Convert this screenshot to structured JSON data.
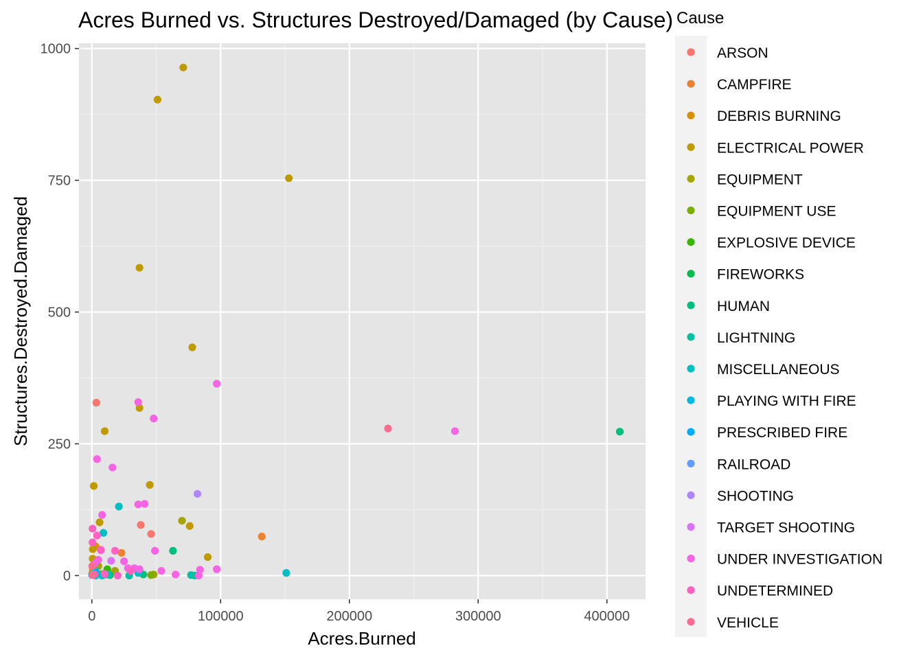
{
  "chart_data": {
    "type": "scatter",
    "title": "Acres Burned vs. Structures Destroyed/Damaged (by Cause)",
    "xlabel": "Acres.Burned",
    "ylabel": "Structures.Destroyed.Damaged",
    "xlim": [
      -10000,
      430000
    ],
    "ylim": [
      -45,
      1010
    ],
    "x_ticks": [
      0,
      100000,
      200000,
      300000,
      400000
    ],
    "x_tick_labels": [
      "0",
      "100000",
      "200000",
      "300000",
      "400000"
    ],
    "y_ticks": [
      0,
      250,
      500,
      750,
      1000
    ],
    "y_tick_labels": [
      "0",
      "250",
      "500",
      "750",
      "1000"
    ],
    "grid": true,
    "panel_background": "#e5e5e5",
    "legend": {
      "title": "Cause",
      "position": "right",
      "background": "#f2f2f2"
    },
    "series": [
      {
        "name": "ARSON",
        "color": "#F8766D",
        "points": [
          [
            3500,
            328
          ],
          [
            38000,
            96
          ],
          [
            46000,
            79
          ],
          [
            2000,
            15
          ]
        ]
      },
      {
        "name": "CAMPFIRE",
        "color": "#EA8331",
        "points": [
          [
            132000,
            74
          ],
          [
            23000,
            43
          ],
          [
            500,
            5
          ]
        ]
      },
      {
        "name": "DEBRIS BURNING",
        "color": "#D89000",
        "points": [
          [
            800,
            12
          ],
          [
            1500,
            3
          ],
          [
            3000,
            55
          ]
        ]
      },
      {
        "name": "ELECTRICAL POWER",
        "color": "#C09B00",
        "points": [
          [
            71000,
            964
          ],
          [
            51000,
            903
          ],
          [
            153000,
            754
          ],
          [
            37000,
            584
          ],
          [
            78000,
            433
          ],
          [
            37000,
            318
          ],
          [
            10000,
            274
          ],
          [
            1500,
            170
          ],
          [
            45000,
            172
          ],
          [
            6000,
            101
          ],
          [
            76000,
            94
          ],
          [
            90000,
            35
          ],
          [
            700,
            50
          ],
          [
            600,
            32
          ],
          [
            200,
            2
          ],
          [
            12000,
            2
          ]
        ]
      },
      {
        "name": "EQUIPMENT",
        "color": "#A3A500",
        "points": [
          [
            70000,
            104
          ],
          [
            48000,
            2
          ],
          [
            18000,
            9
          ],
          [
            5000,
            18
          ]
        ]
      },
      {
        "name": "EQUIPMENT USE",
        "color": "#7CAE00",
        "points": [
          [
            46000,
            1
          ],
          [
            8000,
            3
          ]
        ]
      },
      {
        "name": "EXPLOSIVE DEVICE",
        "color": "#39B600",
        "points": [
          [
            12000,
            12
          ]
        ]
      },
      {
        "name": "FIREWORKS",
        "color": "#00BB4E",
        "points": [
          [
            14000,
            1
          ]
        ]
      },
      {
        "name": "HUMAN",
        "color": "#00BF7D",
        "points": [
          [
            410000,
            273
          ],
          [
            63000,
            47
          ],
          [
            40000,
            2
          ],
          [
            10000,
            2
          ]
        ]
      },
      {
        "name": "LIGHTNING",
        "color": "#00C1A3",
        "points": [
          [
            77000,
            1
          ],
          [
            80000,
            0
          ],
          [
            29000,
            0
          ],
          [
            13000,
            2
          ]
        ]
      },
      {
        "name": "MISCELLANEOUS",
        "color": "#00BFC4",
        "points": [
          [
            151000,
            5
          ],
          [
            21000,
            131
          ],
          [
            9000,
            81
          ],
          [
            36000,
            5
          ],
          [
            8000,
            0
          ],
          [
            3000,
            0
          ]
        ]
      },
      {
        "name": "PLAYING WITH FIRE",
        "color": "#00B9E3",
        "points": [
          [
            3000,
            8
          ]
        ]
      },
      {
        "name": "PRESCRIBED FIRE",
        "color": "#00ADFA",
        "points": [
          [
            200,
            1
          ]
        ]
      },
      {
        "name": "RAILROAD",
        "color": "#619CFF",
        "points": [
          [
            1200,
            2
          ]
        ]
      },
      {
        "name": "SHOOTING",
        "color": "#AE87FF",
        "points": [
          [
            82000,
            155
          ]
        ]
      },
      {
        "name": "TARGET SHOOTING",
        "color": "#DB72FB",
        "points": [
          [
            15000,
            28
          ]
        ]
      },
      {
        "name": "UNDER INVESTIGATION",
        "color": "#F564E3",
        "points": [
          [
            282000,
            274
          ],
          [
            97000,
            364
          ],
          [
            48000,
            298
          ],
          [
            36000,
            329
          ],
          [
            4000,
            221
          ],
          [
            16000,
            205
          ],
          [
            36000,
            135
          ],
          [
            41000,
            136
          ],
          [
            8000,
            115
          ],
          [
            49000,
            47
          ],
          [
            25000,
            27
          ],
          [
            54000,
            9
          ],
          [
            84000,
            11
          ],
          [
            97000,
            12
          ],
          [
            65000,
            2
          ],
          [
            83000,
            0
          ],
          [
            28000,
            14
          ],
          [
            33000,
            14
          ],
          [
            37000,
            12
          ],
          [
            5000,
            30
          ],
          [
            7000,
            48
          ],
          [
            2000,
            22
          ]
        ]
      },
      {
        "name": "UNDETERMINED",
        "color": "#FF61C3",
        "points": [
          [
            500,
            89
          ],
          [
            4000,
            76
          ],
          [
            500,
            63
          ],
          [
            7000,
            49
          ],
          [
            18000,
            47
          ],
          [
            2000,
            2
          ],
          [
            10000,
            3
          ],
          [
            20000,
            0
          ],
          [
            30000,
            9
          ]
        ]
      },
      {
        "name": "VEHICLE",
        "color": "#FF6C91",
        "points": [
          [
            230000,
            279
          ],
          [
            300,
            18
          ],
          [
            600,
            1
          ]
        ]
      }
    ]
  }
}
